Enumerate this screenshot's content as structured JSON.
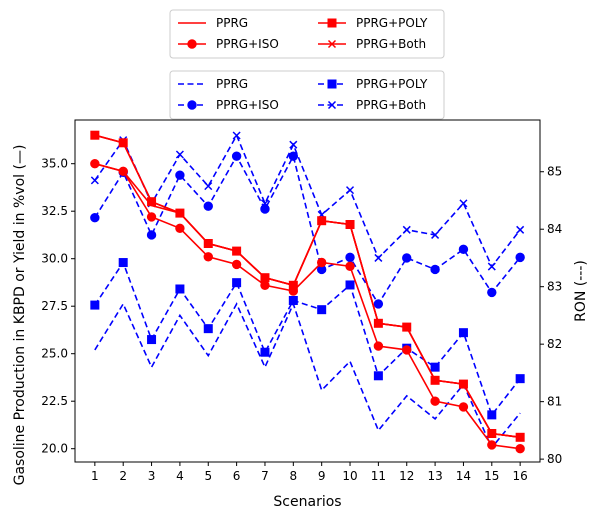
{
  "chart_data": {
    "type": "line",
    "xlabel": "Scenarios",
    "ylabel_left": "Gasoline Production in KBPD or Yield in %vol (—)",
    "ylabel_right": "RON (---)",
    "categories": [
      "1",
      "2",
      "3",
      "4",
      "5",
      "6",
      "7",
      "8",
      "9",
      "10",
      "11",
      "12",
      "13",
      "14",
      "15",
      "16"
    ],
    "x": [
      1,
      2,
      3,
      4,
      5,
      6,
      7,
      8,
      9,
      10,
      11,
      12,
      13,
      14,
      15,
      16
    ],
    "ylim_left": [
      19.3,
      37.3
    ],
    "yticks_left": [
      "20.0",
      "22.5",
      "25.0",
      "27.5",
      "30.0",
      "32.5",
      "35.0"
    ],
    "yticks_left_values": [
      20.0,
      22.5,
      25.0,
      27.5,
      30.0,
      32.5,
      35.0
    ],
    "ylim_right": [
      79.95,
      85.9
    ],
    "yticks_right": [
      "80",
      "81",
      "82",
      "83",
      "84",
      "85"
    ],
    "yticks_right_values": [
      80,
      81,
      82,
      83,
      84,
      85
    ],
    "grid": false,
    "legend_left_title": "",
    "legend_right_title": "",
    "legends": [
      {
        "placement": "top-center",
        "entries": [
          "PPRG",
          "PPRG+ISO",
          "PPRG+POLY",
          "PPRG+Both"
        ]
      },
      {
        "placement": "top-center-below",
        "entries": [
          "PPRG",
          "PPRG+ISO",
          "PPRG+POLY",
          "PPRG+Both"
        ]
      }
    ],
    "series_left": [
      {
        "name": "PPRG",
        "color": "#ff0000",
        "style": "solid",
        "marker": "none",
        "values": [
          35.0,
          34.6,
          32.8,
          32.4,
          30.8,
          30.4,
          29.0,
          28.6,
          32.0,
          31.8,
          26.6,
          26.4,
          23.6,
          23.4,
          20.8,
          20.6
        ]
      },
      {
        "name": "PPRG+ISO",
        "color": "#ff0000",
        "style": "solid",
        "marker": "circle",
        "values": [
          35.0,
          34.6,
          32.2,
          31.6,
          30.1,
          29.7,
          28.6,
          28.3,
          29.8,
          29.6,
          25.4,
          25.2,
          22.5,
          22.2,
          20.2,
          20.0
        ]
      },
      {
        "name": "PPRG+POLY",
        "color": "#ff0000",
        "style": "solid",
        "marker": "square",
        "values": [
          36.5,
          36.1,
          33.0,
          32.4,
          30.8,
          30.4,
          29.0,
          28.6,
          32.0,
          31.8,
          26.6,
          26.4,
          23.6,
          23.4,
          20.8,
          20.6
        ]
      },
      {
        "name": "PPRG+Both",
        "color": "#ff0000",
        "style": "solid",
        "marker": "x",
        "values": [
          36.5,
          36.1,
          33.0,
          32.4,
          30.8,
          30.4,
          29.0,
          28.6,
          32.0,
          31.8,
          26.6,
          26.4,
          23.6,
          23.4,
          20.8,
          20.6
        ]
      }
    ],
    "series_right": [
      {
        "name": "PPRG",
        "color": "#0000ff",
        "style": "dashed",
        "marker": "none",
        "values": [
          81.9,
          82.7,
          81.6,
          82.5,
          81.8,
          82.7,
          81.6,
          82.7,
          81.2,
          81.7,
          80.5,
          81.1,
          80.7,
          81.3,
          80.2,
          80.8
        ]
      },
      {
        "name": "PPRG+ISO",
        "color": "#0000ff",
        "style": "dashed",
        "marker": "circle",
        "values": [
          84.2,
          84.99,
          83.9,
          84.94,
          84.4,
          85.27,
          84.35,
          85.27,
          83.3,
          83.51,
          82.7,
          83.5,
          83.3,
          83.65,
          82.9,
          83.51
        ]
      },
      {
        "name": "PPRG+POLY",
        "color": "#0000ff",
        "style": "dashed",
        "marker": "square",
        "values": [
          82.68,
          83.42,
          82.08,
          82.96,
          82.27,
          83.07,
          81.86,
          82.76,
          82.6,
          83.03,
          81.45,
          81.93,
          81.6,
          82.2,
          80.77,
          81.4
        ]
      },
      {
        "name": "PPRG+Both",
        "color": "#0000ff",
        "style": "dashed",
        "marker": "x",
        "values": [
          84.85,
          85.55,
          84.45,
          85.3,
          84.75,
          85.63,
          84.45,
          85.47,
          84.25,
          84.68,
          83.5,
          83.99,
          83.9,
          84.45,
          83.35,
          83.99
        ]
      }
    ]
  }
}
